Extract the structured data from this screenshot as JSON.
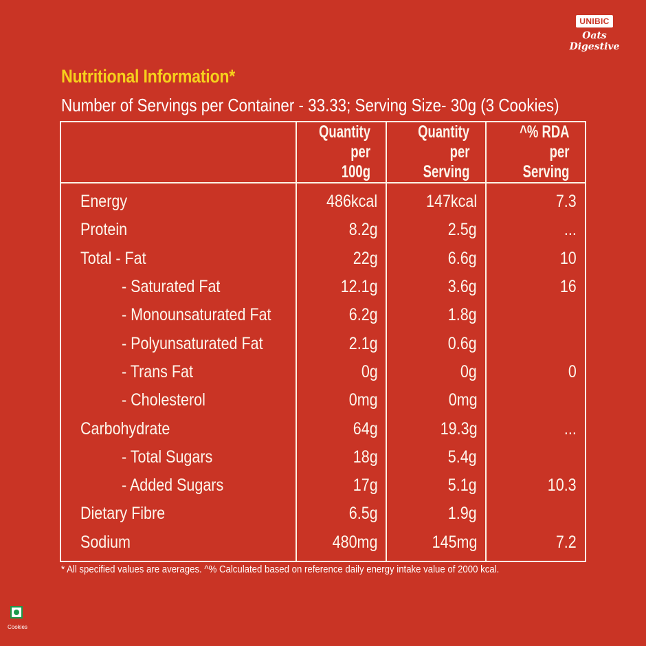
{
  "brand": {
    "name": "UNIBIC",
    "product": "Oats Digestive"
  },
  "title": "Nutritional Information*",
  "subtitle": "Number of Servings per Container - 33.33; Serving Size- 30g (3 Cookies)",
  "table": {
    "headers": [
      "",
      "Quantity per 100g",
      "Quantity per Serving",
      "^% RDA per Serving"
    ],
    "header_lines": [
      [
        "",
        ""
      ],
      [
        "Quantity",
        "per 100g"
      ],
      [
        "Quantity",
        "per Serving"
      ],
      [
        "^% RDA",
        "per Serving"
      ]
    ],
    "rows": [
      {
        "name": "Energy",
        "indent": 0,
        "per100g": "486kcal",
        "perServing": "147kcal",
        "rda": "7.3"
      },
      {
        "name": "Protein",
        "indent": 0,
        "per100g": "8.2g",
        "perServing": "2.5g",
        "rda": "..."
      },
      {
        "name": "Total - Fat",
        "indent": 0,
        "per100g": "22g",
        "perServing": "6.6g",
        "rda": "10"
      },
      {
        "name": "-  Saturated Fat",
        "indent": 1,
        "per100g": "12.1g",
        "perServing": "3.6g",
        "rda": "16"
      },
      {
        "name": "-  Monounsaturated Fat",
        "indent": 1,
        "per100g": "6.2g",
        "perServing": "1.8g",
        "rda": ""
      },
      {
        "name": "-  Polyunsaturated Fat",
        "indent": 1,
        "per100g": "2.1g",
        "perServing": "0.6g",
        "rda": ""
      },
      {
        "name": "-  Trans Fat",
        "indent": 1,
        "per100g": "0g",
        "perServing": "0g",
        "rda": "0"
      },
      {
        "name": "-  Cholesterol",
        "indent": 1,
        "per100g": "0mg",
        "perServing": "0mg",
        "rda": ""
      },
      {
        "name": "Carbohydrate",
        "indent": 0,
        "per100g": "64g",
        "perServing": "19.3g",
        "rda": "..."
      },
      {
        "name": "-  Total Sugars",
        "indent": 1,
        "per100g": "18g",
        "perServing": "5.4g",
        "rda": ""
      },
      {
        "name": "-  Added Sugars",
        "indent": 1,
        "per100g": "17g",
        "perServing": "5.1g",
        "rda": "10.3"
      },
      {
        "name": "Dietary Fibre",
        "indent": 0,
        "per100g": "6.5g",
        "perServing": "1.9g",
        "rda": ""
      },
      {
        "name": "Sodium",
        "indent": 0,
        "per100g": "480mg",
        "perServing": "145mg",
        "rda": "7.2"
      }
    ]
  },
  "footnote": "* All specified values are averages. ^% Calculated based on reference daily energy intake value of 2000 kcal.",
  "veg_mark": {
    "label": "Cookies",
    "icon": "veg-symbol-icon",
    "color": "#1a9a4a"
  },
  "colors": {
    "background": "#c93425",
    "title": "#f6d01c",
    "text": "#ffffff"
  }
}
